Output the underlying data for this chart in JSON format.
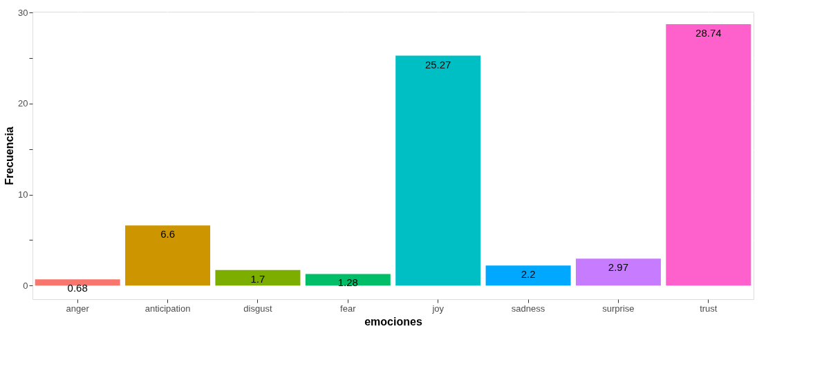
{
  "chart_data": {
    "type": "bar",
    "xlabel": "emociones",
    "ylabel": "Frecuencia",
    "categories": [
      "anger",
      "anticipation",
      "disgust",
      "fear",
      "joy",
      "sadness",
      "surprise",
      "trust"
    ],
    "values": [
      0.68,
      6.6,
      1.7,
      1.28,
      25.27,
      2.2,
      2.97,
      28.74
    ],
    "colors": [
      "#f8766d",
      "#cd9600",
      "#7cae00",
      "#00be67",
      "#00bfc4",
      "#00a9ff",
      "#c77cff",
      "#ff61cc"
    ],
    "ylim": [
      -1.5,
      30.1
    ],
    "yticks": [
      0,
      {
        "value": 5,
        "label": null
      },
      10,
      {
        "value": 15,
        "label": null
      },
      20,
      {
        "value": 25,
        "label": null
      },
      30
    ],
    "grid": true,
    "data_labels": true
  }
}
